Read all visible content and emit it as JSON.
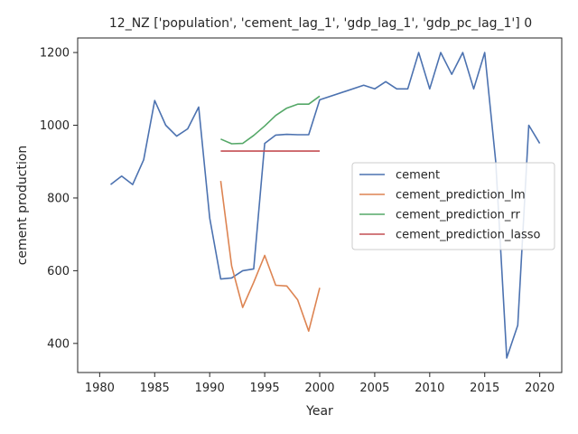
{
  "chart_data": {
    "type": "line",
    "title": "12_NZ ['population', 'cement_lag_1', 'gdp_lag_1', 'gdp_pc_lag_1'] 0",
    "xlabel": "Year",
    "ylabel": "cement production",
    "xlim": [
      1978.0,
      2022.0
    ],
    "ylim": [
      320,
      1240
    ],
    "xticks": [
      1980,
      1985,
      1990,
      1995,
      2000,
      2005,
      2010,
      2015,
      2020
    ],
    "yticks": [
      400,
      600,
      800,
      1000,
      1200
    ],
    "grid": false,
    "legend_position": "center-right",
    "series": [
      {
        "name": "cement",
        "color": "#4c72b0",
        "x": [
          1981,
          1982,
          1983,
          1984,
          1985,
          1986,
          1987,
          1988,
          1989,
          1990,
          1991,
          1992,
          1993,
          1994,
          1995,
          1996,
          1997,
          1998,
          1999,
          2000,
          2004,
          2005,
          2006,
          2007,
          2008,
          2009,
          2010,
          2011,
          2012,
          2013,
          2014,
          2015,
          2016,
          2017,
          2018,
          2019,
          2020
        ],
        "values": [
          837,
          860,
          837,
          905,
          1068,
          1000,
          970,
          990,
          1050,
          745,
          577,
          580,
          600,
          605,
          950,
          973,
          975,
          974,
          974,
          1070,
          1110,
          1100,
          1120,
          1100,
          1100,
          1200,
          1100,
          1200,
          1140,
          1200,
          1100,
          1200,
          900,
          360,
          450,
          1000,
          950
        ]
      },
      {
        "name": "cement_prediction_lm",
        "color": "#dd8452",
        "x": [
          1991,
          1992,
          1993,
          1994,
          1995,
          1996,
          1997,
          1998,
          1999,
          2000
        ],
        "values": [
          847,
          613,
          499,
          568,
          642,
          560,
          558,
          520,
          434,
          553
        ]
      },
      {
        "name": "cement_prediction_rr",
        "color": "#55a868",
        "x": [
          1991,
          1992,
          1993,
          1994,
          1995,
          1996,
          1997,
          1998,
          1999,
          2000
        ],
        "values": [
          962,
          949,
          950,
          972,
          998,
          1027,
          1047,
          1058,
          1058,
          1080
        ]
      },
      {
        "name": "cement_prediction_lasso",
        "color": "#c44e52",
        "x": [
          1991,
          1992,
          1993,
          1994,
          1995,
          1996,
          1997,
          1998,
          1999,
          2000
        ],
        "values": [
          929,
          929,
          929,
          929,
          929,
          929,
          929,
          929,
          929,
          929
        ]
      }
    ]
  }
}
